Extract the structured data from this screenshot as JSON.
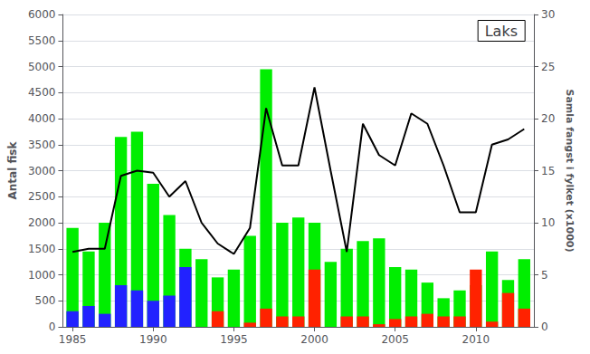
{
  "chart_data": {
    "type": "bar",
    "stacked": true,
    "title": "Laks",
    "ylabel": "Antal fisk",
    "y2label": "Samla fangst i fylket (x1000)",
    "x": [
      1985,
      1986,
      1987,
      1988,
      1989,
      1990,
      1991,
      1992,
      1993,
      1994,
      1995,
      1996,
      1997,
      1998,
      1999,
      2000,
      2001,
      2002,
      2003,
      2004,
      2005,
      2006,
      2007,
      2008,
      2009,
      2010,
      2011,
      2012,
      2013
    ],
    "series": [
      {
        "type": "bar",
        "color": "#00ee00",
        "values": [
          1900,
          1450,
          2000,
          3650,
          3750,
          2750,
          2150,
          1500,
          1300,
          950,
          1100,
          1750,
          4950,
          2000,
          2100,
          2000,
          1250,
          1500,
          1650,
          1700,
          1150,
          1100,
          850,
          550,
          700,
          800,
          1450,
          900,
          1300
        ]
      },
      {
        "type": "bar",
        "color": "#ff2200",
        "values": [
          0,
          0,
          0,
          0,
          0,
          0,
          0,
          0,
          0,
          300,
          0,
          80,
          350,
          200,
          200,
          1100,
          0,
          200,
          200,
          50,
          150,
          200,
          250,
          200,
          200,
          1100,
          100,
          650,
          350
        ]
      },
      {
        "type": "bar",
        "color": "#2222ff",
        "values": [
          300,
          400,
          250,
          800,
          700,
          500,
          600,
          1150,
          0,
          0,
          0,
          0,
          0,
          0,
          0,
          0,
          0,
          0,
          0,
          0,
          0,
          0,
          0,
          0,
          0,
          0,
          0,
          0,
          0
        ]
      },
      {
        "type": "line",
        "axis": "y2",
        "color": "#000000",
        "values": [
          7.2,
          7.5,
          7.5,
          14.5,
          15.0,
          14.8,
          12.5,
          14.0,
          10.0,
          8.0,
          7.0,
          9.5,
          21.0,
          15.5,
          15.5,
          23.0,
          15.0,
          7.2,
          19.5,
          16.5,
          15.5,
          20.5,
          19.5,
          15.5,
          11.0,
          11.0,
          17.5,
          18.0,
          19.0
        ]
      }
    ],
    "xlim": [
      1984.4,
      2013.6
    ],
    "xticks": [
      1985,
      1990,
      1995,
      2000,
      2005,
      2010
    ],
    "ylim": [
      0,
      6000
    ],
    "yticks": [
      0,
      500,
      1000,
      1500,
      2000,
      2500,
      3000,
      3500,
      4000,
      4500,
      5000,
      5500,
      6000
    ],
    "y2lim": [
      0,
      30
    ],
    "y2ticks": [
      0,
      5,
      10,
      15,
      20,
      25,
      30
    ],
    "grid": true
  }
}
